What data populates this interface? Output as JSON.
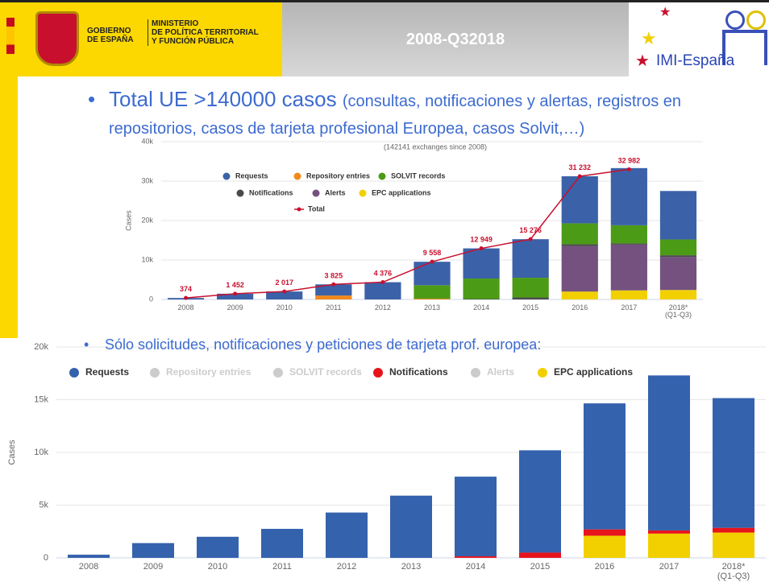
{
  "header": {
    "gov": [
      "GOBIERNO",
      "DE ESPAÑA"
    ],
    "ministry": [
      "MINISTERIO",
      "DE POLÍTICA TERRITORIAL",
      "Y FUNCIÓN PÚBLICA"
    ],
    "title": "2008-Q32018",
    "logo": "IMI-España"
  },
  "bullets": [
    {
      "main": "Total UE >140000 casos",
      "detail": "(consultas, notificaciones y alertas, registros en repositorios, casos de tarjeta profesional Europea, casos Solvit,…)"
    },
    {
      "main": "Sólo solicitudes, notificaciones y peticiones de tarjeta prof. europea:"
    }
  ],
  "chart_data": [
    {
      "type": "bar",
      "stacked": true,
      "subtitle": "(142141 exchanges since 2008)",
      "y_label": "Cases",
      "categories": [
        "2008",
        "2009",
        "2010",
        "2011",
        "2012",
        "2013",
        "2014",
        "2015",
        "2016",
        "2017",
        "2018*\n(Q1-Q3)"
      ],
      "ylim": [
        0,
        40000
      ],
      "yticks": [
        0,
        {
          "value": 10000,
          "label": "10k"
        },
        {
          "value": 20000,
          "label": "20k"
        },
        {
          "value": 30000,
          "label": "30k"
        },
        {
          "value": 40000,
          "label": "40k"
        }
      ],
      "grid": true,
      "series": [
        {
          "name": "EPC applications",
          "color": "#f2d000",
          "values": [
            0,
            0,
            0,
            0,
            0,
            0,
            0,
            0,
            2000,
            2300,
            2400
          ]
        },
        {
          "name": "Alerts",
          "color": "#74517f",
          "values": [
            0,
            0,
            0,
            0,
            0,
            0,
            0,
            0,
            11500,
            11600,
            8400
          ]
        },
        {
          "name": "Notifications",
          "color": "#4a4a4a",
          "values": [
            0,
            0,
            0,
            0,
            0,
            0,
            100,
            500,
            500,
            300,
            400
          ]
        },
        {
          "name": "Repository entries",
          "color": "#f08a1c",
          "values": [
            0,
            0,
            0,
            1000,
            0,
            200,
            0,
            0,
            0,
            0,
            0
          ]
        },
        {
          "name": "SOLVIT records",
          "color": "#4c9b17",
          "values": [
            0,
            0,
            0,
            0,
            0,
            3400,
            5200,
            5000,
            5300,
            4600,
            4000
          ]
        },
        {
          "name": "Requests",
          "color": "#3b62a8",
          "values": [
            374,
            1452,
            2017,
            2825,
            4376,
            5958,
            7649,
            9776,
            11932,
            14500,
            12300
          ]
        },
        {
          "name": "Total",
          "type": "line",
          "color": "#c8102e",
          "values": [
            374,
            1452,
            2017,
            3825,
            4376,
            9558,
            12949,
            15276,
            31232,
            32982,
            null
          ],
          "value_labels": [
            "374",
            "1 452",
            "2 017",
            "3 825",
            "4 376",
            "9 558",
            "12 949",
            "15 276",
            "31 232",
            "32 982",
            null
          ]
        }
      ]
    },
    {
      "type": "bar",
      "stacked": true,
      "y_label": "Cases",
      "categories": [
        "2008",
        "2009",
        "2010",
        "2011",
        "2012",
        "2013",
        "2014",
        "2015",
        "2016",
        "2017",
        "2018*\n(Q1-Q3)"
      ],
      "ylim": [
        0,
        20000
      ],
      "yticks": [
        0,
        {
          "value": 5000,
          "label": "5k"
        },
        {
          "value": 10000,
          "label": "10k"
        },
        {
          "value": 15000,
          "label": "15k"
        },
        {
          "value": 20000,
          "label": "20k"
        }
      ],
      "grid": true,
      "series": [
        {
          "name": "EPC applications",
          "color": "#f2d000",
          "values": [
            0,
            0,
            0,
            0,
            0,
            0,
            0,
            0,
            2100,
            2300,
            2400
          ]
        },
        {
          "name": "Alerts",
          "color": "#cccccc",
          "visible": false
        },
        {
          "name": "Notifications",
          "color": "#e8141c",
          "values": [
            0,
            0,
            0,
            0,
            0,
            0,
            150,
            500,
            600,
            300,
            450
          ]
        },
        {
          "name": "Repository entries",
          "color": "#cccccc",
          "visible": false
        },
        {
          "name": "SOLVIT records",
          "color": "#cccccc",
          "visible": false
        },
        {
          "name": "Requests",
          "color": "#3562ad",
          "values": [
            300,
            1400,
            2000,
            2750,
            4300,
            5900,
            7550,
            9700,
            11950,
            14700,
            12300
          ]
        }
      ]
    }
  ]
}
